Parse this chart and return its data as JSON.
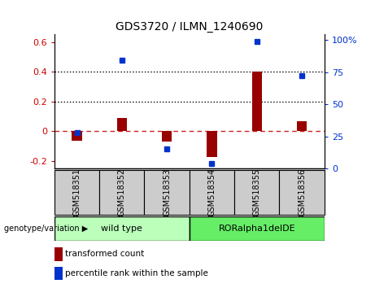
{
  "title": "GDS3720 / ILMN_1240690",
  "categories": [
    "GSM518351",
    "GSM518352",
    "GSM518353",
    "GSM518354",
    "GSM518355",
    "GSM518356"
  ],
  "red_values": [
    -0.065,
    0.09,
    -0.07,
    -0.175,
    0.4,
    0.065
  ],
  "blue_values": [
    0.28,
    0.84,
    0.15,
    0.04,
    0.99,
    0.72
  ],
  "left_ylim": [
    -0.25,
    0.65
  ],
  "left_yticks": [
    -0.2,
    0.0,
    0.2,
    0.4,
    0.6
  ],
  "right_ylim": [
    0,
    1.04167
  ],
  "right_yticks": [
    0,
    0.25,
    0.5,
    0.75,
    1.0
  ],
  "right_yticklabels": [
    "0",
    "25",
    "50",
    "75",
    "100%"
  ],
  "hline_y": [
    0.2,
    0.4
  ],
  "red_color": "#990000",
  "blue_color": "#0033cc",
  "red_dashed_color": "#cc2222",
  "group_labels": [
    "wild type",
    "RORalpha1delDE"
  ],
  "group_colors": [
    "#bbffbb",
    "#66ee66"
  ],
  "xlabel_left": "genotype/variation",
  "legend_labels": [
    "transformed count",
    "percentile rank within the sample"
  ],
  "legend_colors": [
    "#990000",
    "#0033cc"
  ],
  "tick_label_color_left": "#cc0000",
  "tick_label_color_right": "#0033cc",
  "bg_color": "#ffffff",
  "plot_bg_color": "#ffffff",
  "dotted_line_color": "#000000",
  "gray_box_color": "#cccccc"
}
